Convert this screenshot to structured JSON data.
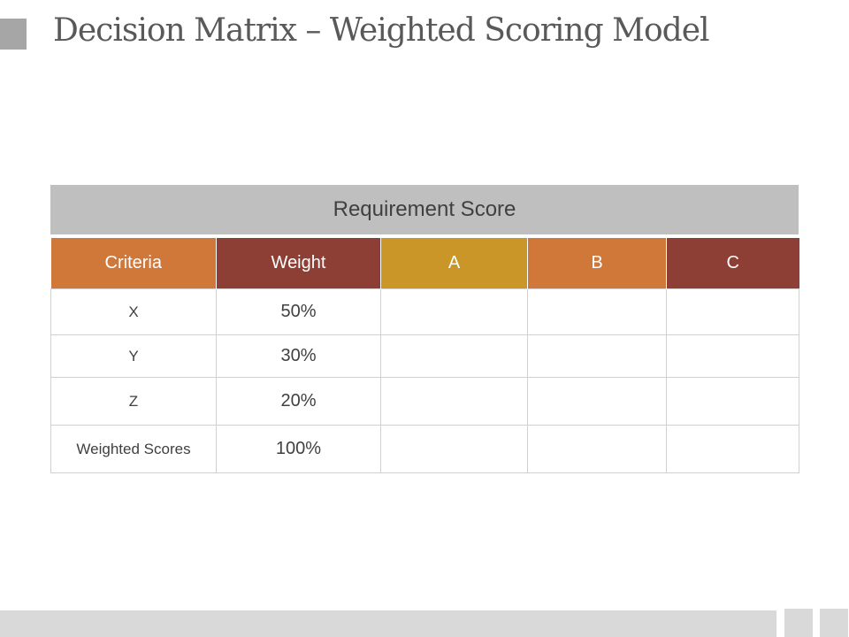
{
  "slide": {
    "title": "Decision Matrix – Weighted Scoring Model"
  },
  "table": {
    "header": "Requirement Score",
    "columns": [
      {
        "label": "Criteria",
        "color": "#d0783a"
      },
      {
        "label": "Weight",
        "color": "#8e3f35"
      },
      {
        "label": "A",
        "color": "#c99627"
      },
      {
        "label": "B",
        "color": "#d0783a"
      },
      {
        "label": "C",
        "color": "#8e3f35"
      }
    ],
    "rows": [
      {
        "criteria": "X",
        "weight": "50%",
        "a": "",
        "b": "",
        "c": ""
      },
      {
        "criteria": "Y",
        "weight": "30%",
        "a": "",
        "b": "",
        "c": ""
      },
      {
        "criteria": "Z",
        "weight": "20%",
        "a": "",
        "b": "",
        "c": ""
      },
      {
        "criteria": "Weighted Scores",
        "weight": "100%",
        "a": "",
        "b": "",
        "c": ""
      }
    ]
  }
}
